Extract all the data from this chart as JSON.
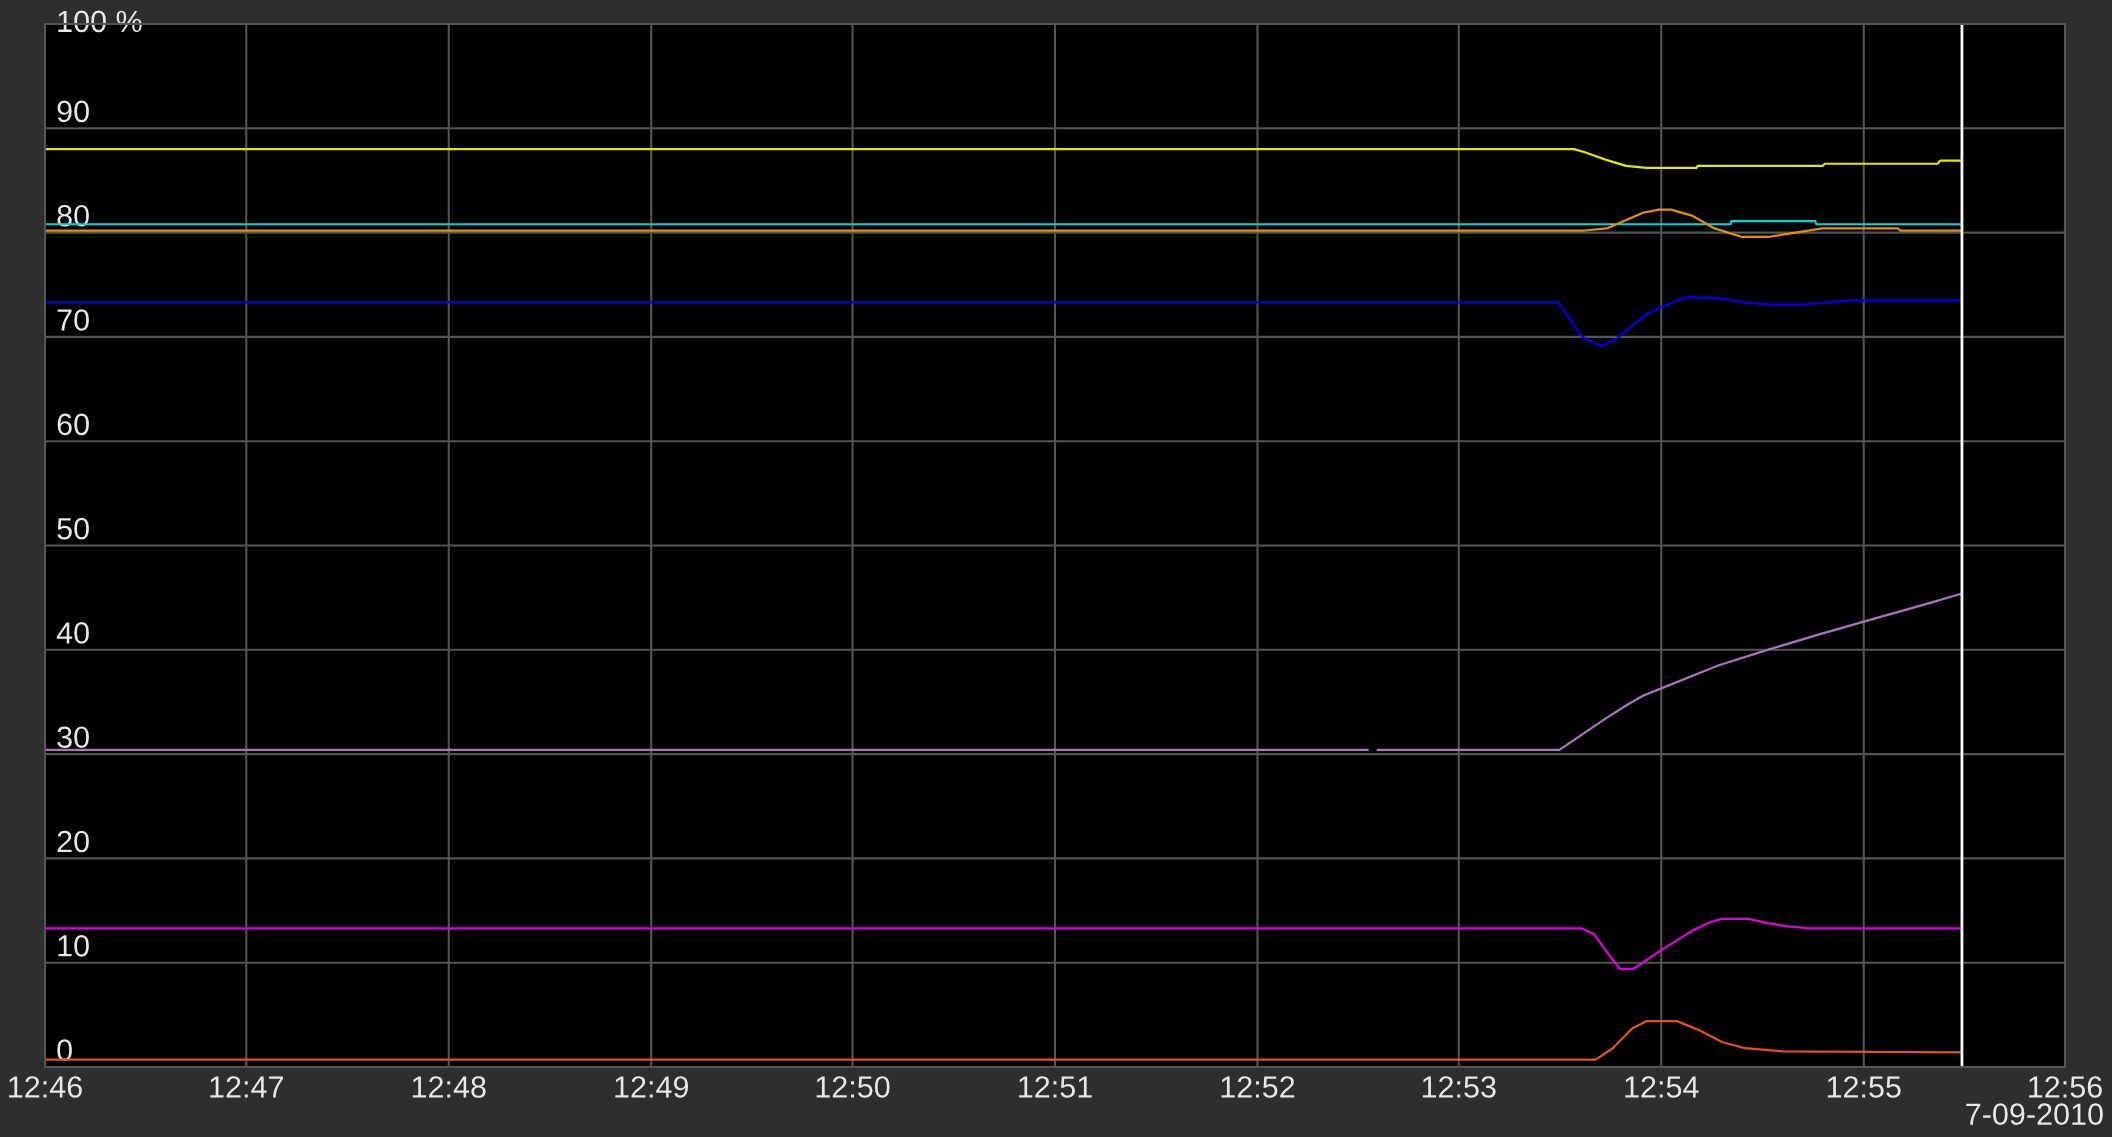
{
  "chart_data": {
    "type": "line",
    "xlim": [
      12.7667,
      12.9333
    ],
    "ylim": [
      0,
      100
    ],
    "xticks": [
      {
        "value": 12.7667,
        "label": "12:46"
      },
      {
        "value": 12.7833,
        "label": "12:47"
      },
      {
        "value": 12.8,
        "label": "12:48"
      },
      {
        "value": 12.8167,
        "label": "12:49"
      },
      {
        "value": 12.8333,
        "label": "12:50"
      },
      {
        "value": 12.85,
        "label": "12:51"
      },
      {
        "value": 12.8667,
        "label": "12:52"
      },
      {
        "value": 12.8833,
        "label": "12:53"
      },
      {
        "value": 12.9,
        "label": "12:54"
      },
      {
        "value": 12.9167,
        "label": "12:55"
      },
      {
        "value": 12.9333,
        "label": "12:56"
      }
    ],
    "yticks": [
      0,
      10,
      20,
      30,
      40,
      50,
      60,
      70,
      80,
      90,
      {
        "value": 100,
        "label": "100 %"
      }
    ],
    "grid": true,
    "annotations": [
      "7-09-2010"
    ],
    "ref_lines": [
      {
        "axis": "x",
        "value": 12.9248,
        "label": null,
        "color": "#ffffff"
      }
    ],
    "series": [
      {
        "color": "#e6e600",
        "x": [
          12.7667,
          12.8928,
          12.8937,
          12.8954,
          12.8971,
          12.8988,
          12.9029,
          12.903,
          12.9133,
          12.9135,
          12.9228,
          12.923,
          12.9248
        ],
        "values": [
          88.0,
          88.0,
          87.7,
          87.0,
          86.4,
          86.2,
          86.2,
          86.4,
          86.4,
          86.6,
          86.6,
          86.9,
          86.9
        ]
      },
      {
        "color": "#00d8e0",
        "x": [
          12.7667,
          12.9057,
          12.9058,
          12.9127,
          12.9128,
          12.9248
        ],
        "values": [
          80.8,
          80.8,
          81.1,
          81.1,
          80.8,
          80.8
        ]
      },
      {
        "color": "#e89000",
        "x": [
          12.7667,
          12.8937,
          12.8955,
          12.8985,
          12.8998,
          12.9008,
          12.9026,
          12.9044,
          12.9066,
          12.9089,
          12.9116,
          12.9133,
          12.9195,
          12.9197,
          12.9248
        ],
        "values": [
          80.2,
          80.2,
          80.4,
          81.9,
          82.2,
          82.2,
          81.6,
          80.4,
          79.6,
          79.6,
          80.1,
          80.4,
          80.4,
          80.2,
          80.2
        ]
      },
      {
        "color": "#0000ee",
        "x": [
          12.7667,
          12.8915,
          12.8935,
          12.8951,
          12.8963,
          12.8988,
          12.9013,
          12.9022,
          12.905,
          12.9069,
          12.9088,
          12.9116,
          12.9158,
          12.9248
        ],
        "values": [
          73.3,
          73.3,
          70.0,
          69.1,
          69.8,
          72.2,
          73.5,
          73.8,
          73.7,
          73.3,
          73.1,
          73.1,
          73.5,
          73.5
        ]
      },
      {
        "color": "#b070c0",
        "x": [
          12.7667,
          12.8758,
          12.8762,
          12.8766,
          12.8916,
          12.8954,
          12.8973,
          12.8985,
          12.9,
          12.9047,
          12.9085,
          12.9131,
          12.9167,
          12.9219,
          12.9248
        ],
        "values": [
          30.4,
          30.4,
          null,
          30.4,
          30.4,
          33.4,
          34.8,
          35.6,
          36.3,
          38.5,
          39.9,
          41.5,
          42.7,
          44.4,
          45.4
        ]
      },
      {
        "color": "#e000e0",
        "x": [
          12.7667,
          12.8934,
          12.8945,
          12.8954,
          12.8966,
          12.8977,
          12.9,
          12.9026,
          12.9041,
          12.905,
          12.9072,
          12.9088,
          12.9103,
          12.9122,
          12.9248
        ],
        "values": [
          13.3,
          13.3,
          12.7,
          11.2,
          9.4,
          9.4,
          11.2,
          13.1,
          13.9,
          14.2,
          14.2,
          13.8,
          13.5,
          13.3,
          13.3
        ]
      },
      {
        "color": "#e85020",
        "x": [
          12.7667,
          12.8946,
          12.896,
          12.8976,
          12.8988,
          12.9013,
          12.9032,
          12.905,
          12.9069,
          12.91,
          12.9248
        ],
        "values": [
          0.7,
          0.7,
          1.8,
          3.7,
          4.4,
          4.4,
          3.5,
          2.4,
          1.8,
          1.5,
          1.4
        ]
      }
    ]
  }
}
